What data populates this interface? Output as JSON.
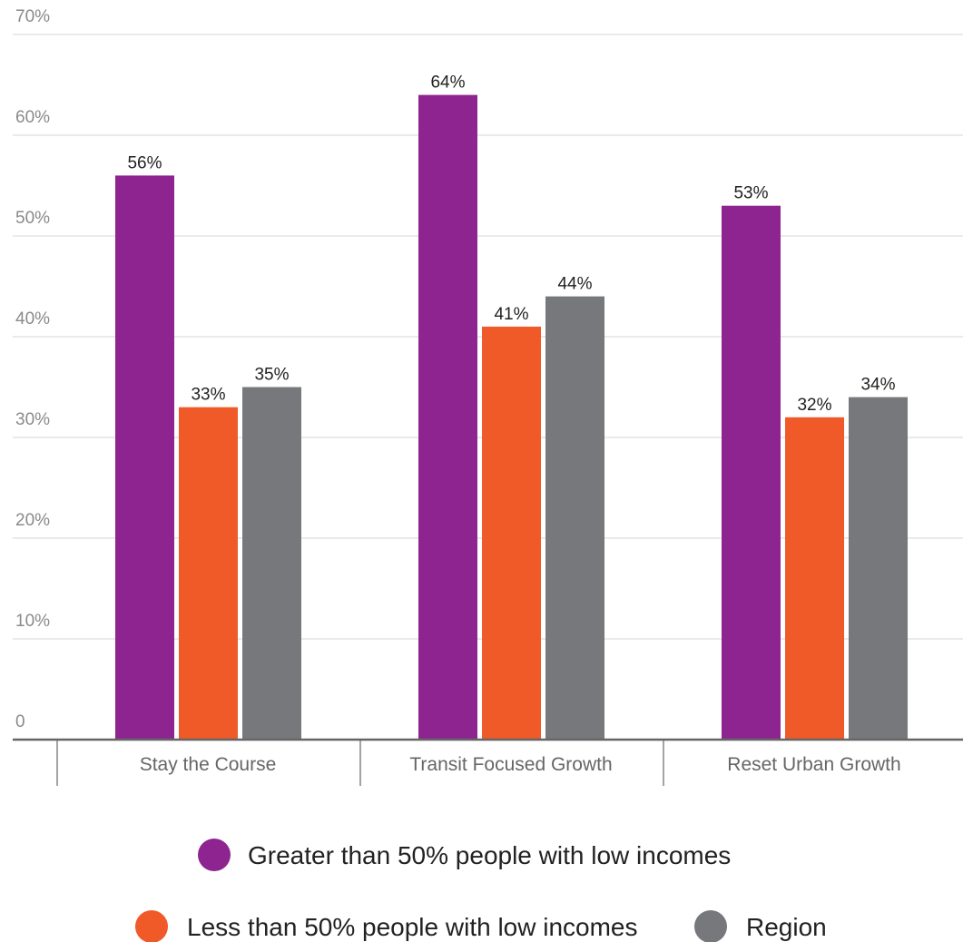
{
  "chart_data": {
    "type": "bar",
    "categories": [
      "Stay the Course",
      "Transit Focused Growth",
      "Reset Urban Growth"
    ],
    "series": [
      {
        "name": "Greater than 50% people with low incomes",
        "color": "#8e2490",
        "values": [
          56,
          64,
          53
        ],
        "labels": [
          "56%",
          "64%",
          "53%"
        ]
      },
      {
        "name": "Less than 50% people with low incomes",
        "color": "#f05a28",
        "values": [
          33,
          41,
          32
        ],
        "labels": [
          "33%",
          "41%",
          "32%"
        ]
      },
      {
        "name": "Region",
        "color": "#77787b",
        "values": [
          35,
          44,
          34
        ],
        "labels": [
          "35%",
          "44%",
          "34%"
        ]
      }
    ],
    "ylim": [
      0,
      70
    ],
    "yticks": [
      0,
      10,
      20,
      30,
      40,
      50,
      60,
      70
    ],
    "ytick_labels": [
      "0",
      "10%",
      "20%",
      "30%",
      "40%",
      "50%",
      "60%",
      "70%"
    ],
    "grid": true,
    "legend": "bottom"
  }
}
